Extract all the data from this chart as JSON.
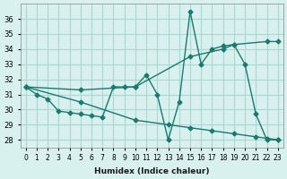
{
  "line1_x": [
    0,
    1,
    2,
    3,
    4,
    5,
    6,
    7,
    8,
    9,
    10,
    11,
    12,
    13,
    14,
    15,
    16,
    17,
    18,
    19,
    20,
    21,
    22,
    23
  ],
  "line1_y": [
    31.5,
    31.0,
    30.7,
    29.9,
    29.8,
    29.7,
    29.6,
    29.5,
    31.5,
    31.5,
    31.5,
    32.3,
    31.0,
    28.0,
    30.5,
    36.5,
    33.0,
    34.0,
    34.2,
    34.3,
    33.0,
    29.7,
    28.0,
    28.0
  ],
  "line2_x": [
    0,
    5,
    10,
    15,
    18,
    19,
    22,
    23
  ],
  "line2_y": [
    31.5,
    31.3,
    31.5,
    33.5,
    34.0,
    34.3,
    34.5,
    34.5
  ],
  "line3_x": [
    0,
    5,
    10,
    13,
    15,
    17,
    19,
    21,
    22,
    23
  ],
  "line3_y": [
    31.5,
    30.5,
    29.3,
    29.0,
    28.8,
    28.6,
    28.4,
    28.2,
    28.1,
    28.0
  ],
  "color": "#1a7a6e",
  "bg_color": "#d8f0ee",
  "grid_color": "#aad8d4",
  "xlabel": "Humidex (Indice chaleur)",
  "ylim": [
    27.5,
    37
  ],
  "xlim": [
    -0.5,
    23.5
  ],
  "yticks": [
    28,
    29,
    30,
    31,
    32,
    33,
    34,
    35,
    36
  ],
  "xticks": [
    0,
    1,
    2,
    3,
    4,
    5,
    6,
    7,
    8,
    9,
    10,
    11,
    12,
    13,
    14,
    15,
    16,
    17,
    18,
    19,
    20,
    21,
    22,
    23
  ],
  "xtick_labels": [
    "0",
    "1",
    "2",
    "3",
    "4",
    "5",
    "6",
    "7",
    "8",
    "9",
    "10",
    "11",
    "12",
    "13",
    "14",
    "15",
    "16",
    "17",
    "18",
    "19",
    "20",
    "21",
    "22",
    "23"
  ]
}
